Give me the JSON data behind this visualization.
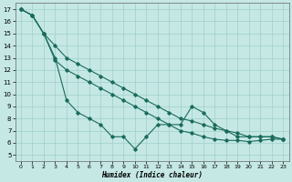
{
  "xlabel": "Humidex (Indice chaleur)",
  "bg_color": "#c5e8e5",
  "grid_color": "#9fcfca",
  "line_color": "#1a6b5a",
  "xlim": [
    -0.5,
    23.5
  ],
  "ylim": [
    4.5,
    17.5
  ],
  "xticks": [
    0,
    1,
    2,
    3,
    4,
    5,
    6,
    7,
    8,
    9,
    10,
    11,
    12,
    13,
    14,
    15,
    16,
    17,
    18,
    19,
    20,
    21,
    22,
    23
  ],
  "yticks": [
    5,
    6,
    7,
    8,
    9,
    10,
    11,
    12,
    13,
    14,
    15,
    16,
    17
  ],
  "line1_x": [
    0,
    1,
    2,
    3,
    4,
    5,
    6,
    7,
    8,
    9,
    10,
    11,
    12,
    13,
    14,
    15,
    16,
    17,
    18,
    19,
    20,
    21,
    22,
    23
  ],
  "line1_y": [
    17,
    16.5,
    15.0,
    14.0,
    13.0,
    12.5,
    12.0,
    11.5,
    11.0,
    10.5,
    10.0,
    9.5,
    9.0,
    8.5,
    8.0,
    7.8,
    7.5,
    7.2,
    7.0,
    6.8,
    6.5,
    6.5,
    6.5,
    6.3
  ],
  "line2_x": [
    0,
    1,
    2,
    3,
    4,
    5,
    6,
    7,
    8,
    9,
    10,
    11,
    12,
    13,
    14,
    15,
    16,
    17,
    18,
    19,
    20,
    21,
    22,
    23
  ],
  "line2_y": [
    17,
    16.5,
    15.0,
    13.0,
    9.5,
    8.5,
    8.0,
    7.5,
    6.5,
    6.5,
    5.5,
    6.5,
    7.5,
    7.5,
    7.5,
    9.0,
    8.5,
    7.5,
    7.0,
    6.5,
    6.5,
    6.5,
    6.5,
    6.3
  ],
  "line3_x": [
    0,
    1,
    2,
    3,
    4,
    5,
    6,
    7,
    8,
    9,
    10,
    11,
    12,
    13,
    14,
    15,
    16,
    17,
    18,
    19,
    20,
    21,
    22,
    23
  ],
  "line3_y": [
    17,
    16.5,
    15.0,
    12.8,
    12.0,
    11.5,
    11.0,
    10.5,
    10.0,
    9.5,
    9.0,
    8.5,
    8.0,
    7.5,
    7.0,
    6.8,
    6.5,
    6.3,
    6.2,
    6.2,
    6.1,
    6.2,
    6.3,
    6.3
  ]
}
